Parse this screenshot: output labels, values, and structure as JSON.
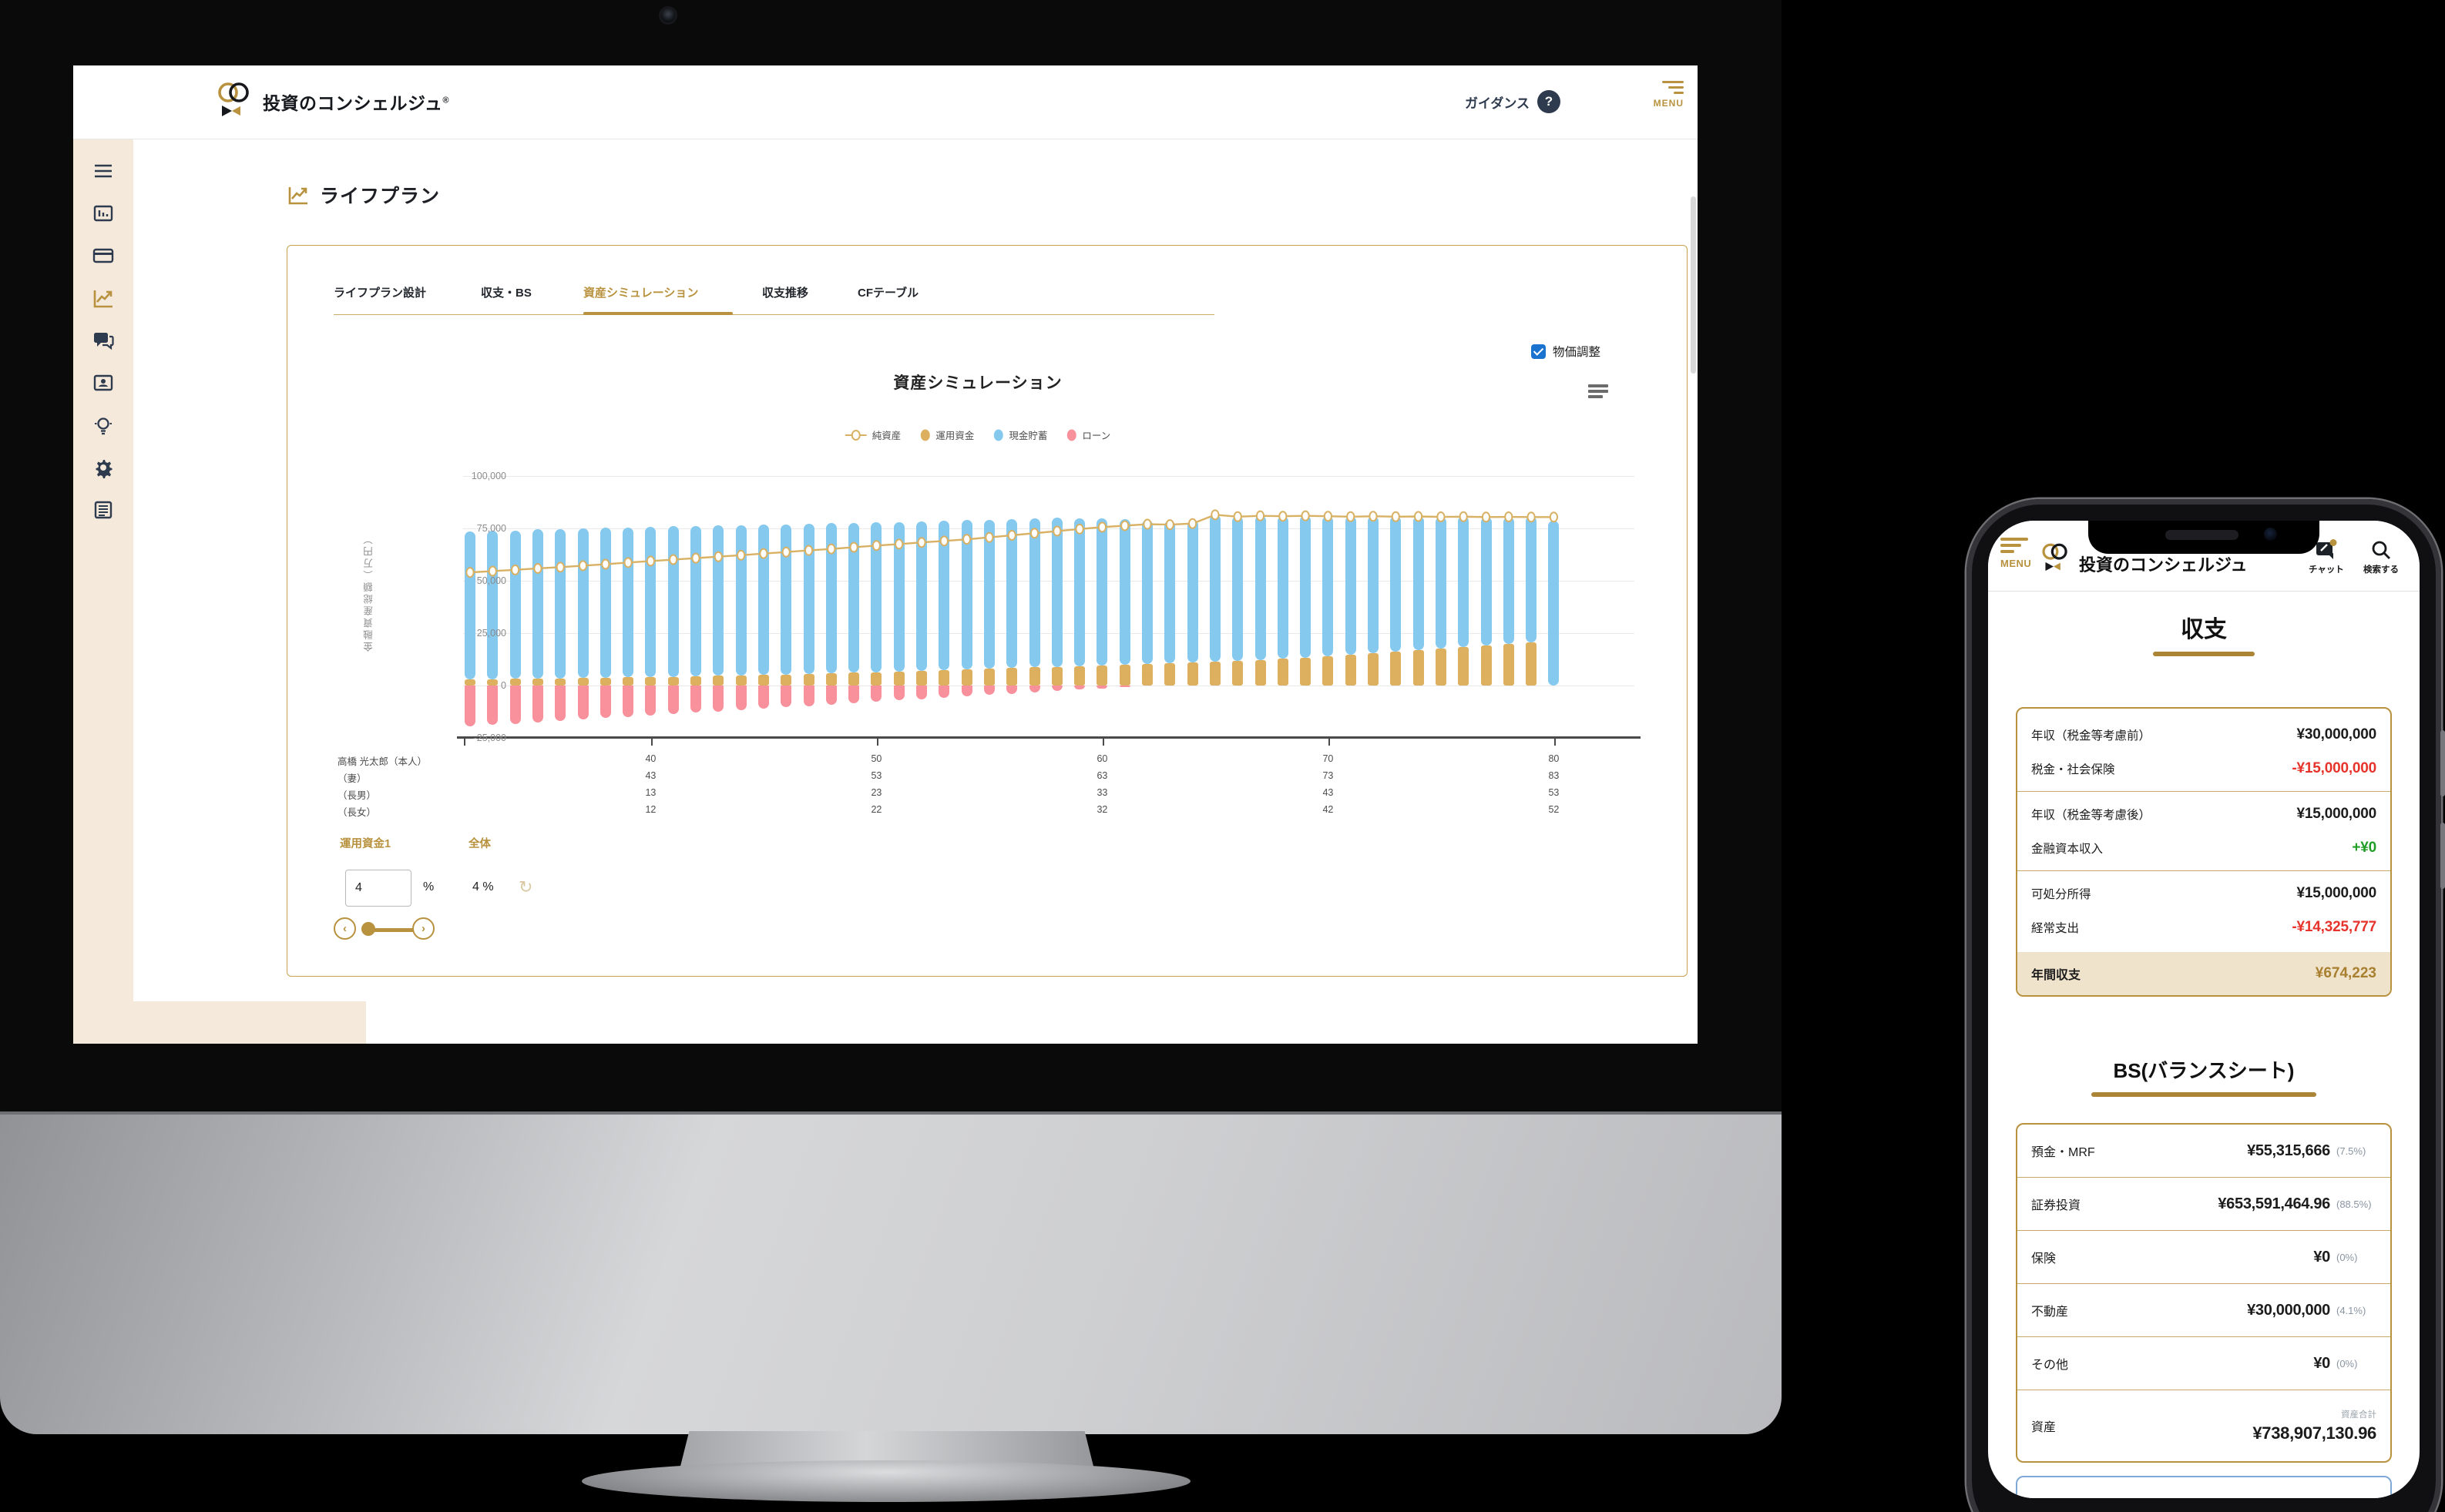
{
  "colors": {
    "gold": "#b8923e",
    "gold_dark": "#a87f2f",
    "navy": "#2e3a4e",
    "beige": "#f4e9da",
    "chart_blue": "#85c9ef",
    "chart_gold": "#ddb05f",
    "chart_red": "#f8919c",
    "line_gold": "#d9b164",
    "negative_red": "#e6342c",
    "positive_green": "#1f9d26",
    "checkbox_blue": "#1a73cf"
  },
  "desktop": {
    "brand": {
      "name": "投資のコンシェルジュ",
      "registered": "®"
    },
    "header": {
      "guidance": "ガイダンス",
      "help_icon": "?",
      "menu": "MENU"
    },
    "sidebar": {
      "icons": [
        "hamburger-icon",
        "dashboard-chart-icon",
        "credit-card-icon",
        "line-chart-icon",
        "chat-icon",
        "id-card-icon",
        "lightbulb-icon",
        "gear-icon",
        "document-icon"
      ],
      "active_index": 3
    },
    "page_title": "ライフプラン",
    "tabs": {
      "items": [
        "ライフプラン設計",
        "収支・BS",
        "資産シミュレーション",
        "収支推移",
        "CFテーブル"
      ],
      "active": 2
    },
    "price_adjust": {
      "label": "物価調整",
      "checked": true
    },
    "controls": {
      "fund_tab": "運用資金1",
      "all_tab": "全体",
      "rate_value": "4",
      "percent": "%",
      "overall_rate": "4 %"
    }
  },
  "chart_data": {
    "type": "bar+line",
    "title": "資産シミュレーション",
    "ylabel": "金融資産総額（万円）",
    "ylim": [
      -25000,
      100000
    ],
    "ytick_values": [
      100000,
      75000,
      50000,
      25000,
      0,
      -25000
    ],
    "ytick_labels": [
      "100,000",
      "75,000",
      "50,000",
      "25,000",
      "0",
      "-25,000"
    ],
    "age_start": 32,
    "age_end": 80,
    "tick_ages": [
      40,
      50,
      60,
      70,
      80
    ],
    "legend": [
      {
        "label": "純資産",
        "marker": "line-circle",
        "color": "#d9b164"
      },
      {
        "label": "運用資金",
        "marker": "circle",
        "color": "#ddb05f"
      },
      {
        "label": "現金貯蓄",
        "marker": "circle",
        "color": "#85c9ef"
      },
      {
        "label": "ローン",
        "marker": "circle",
        "color": "#f8919c"
      }
    ],
    "series": [
      {
        "name": "純資産",
        "type": "line",
        "values": [
          54000,
          54600,
          55200,
          55900,
          56500,
          57200,
          57900,
          58700,
          59400,
          60100,
          60800,
          61500,
          62200,
          63000,
          63700,
          64500,
          65200,
          66000,
          66800,
          67500,
          68300,
          69000,
          69800,
          70700,
          71700,
          72700,
          73700,
          74700,
          75600,
          76300,
          77000,
          76800,
          77300,
          81500,
          80600,
          81000,
          80800,
          81000,
          80800,
          80600,
          80800,
          80600,
          80700,
          80500,
          80600,
          80400,
          80500,
          80400,
          80400
        ]
      },
      {
        "name": "運用資金",
        "type": "bar",
        "values": [
          3000,
          3100,
          3200,
          3300,
          3400,
          3600,
          3700,
          3900,
          4000,
          4200,
          4400,
          4600,
          4800,
          5000,
          5300,
          5500,
          5800,
          6100,
          6400,
          6700,
          7000,
          7300,
          7600,
          8000,
          8300,
          8700,
          9000,
          9300,
          9700,
          10000,
          10400,
          10700,
          11000,
          11300,
          11800,
          12300,
          12900,
          13400,
          14000,
          14700,
          15400,
          16100,
          16800,
          17500,
          18300,
          19100,
          19900,
          20700,
          0
        ]
      },
      {
        "name": "現金貯蓄",
        "type": "bar",
        "values": [
          70500,
          70900,
          70800,
          71200,
          71400,
          71400,
          71500,
          71600,
          71800,
          71800,
          71800,
          71800,
          71800,
          71800,
          71700,
          71700,
          71600,
          71600,
          71500,
          71400,
          71400,
          71300,
          71300,
          71200,
          71200,
          71100,
          71000,
          70500,
          69900,
          69300,
          68700,
          68100,
          68200,
          70200,
          69200,
          68900,
          68100,
          67700,
          66900,
          66100,
          65500,
          64600,
          64000,
          63100,
          62400,
          61400,
          60700,
          60000,
          78500
        ]
      },
      {
        "name": "ローン",
        "type": "bar",
        "values": [
          -19500,
          -18850,
          -18200,
          -17550,
          -16900,
          -16250,
          -15600,
          -14950,
          -14300,
          -13650,
          -13000,
          -12350,
          -11700,
          -11050,
          -10400,
          -9750,
          -9100,
          -8450,
          -7800,
          -7150,
          -6500,
          -5850,
          -5200,
          -4550,
          -3900,
          -3250,
          -2600,
          -1950,
          -1300,
          -650,
          0,
          0,
          0,
          0,
          0,
          0,
          0,
          0,
          0,
          0,
          0,
          0,
          0,
          0,
          0,
          0,
          0,
          0,
          0
        ]
      }
    ],
    "x_axis_rows": [
      {
        "label": "高橋 光太郎（本人）",
        "values": [
          "40",
          "50",
          "60",
          "70",
          "80"
        ]
      },
      {
        "label": "（妻）",
        "values": [
          "43",
          "53",
          "63",
          "73",
          "83"
        ]
      },
      {
        "label": "（長男）",
        "values": [
          "13",
          "23",
          "33",
          "43",
          "53"
        ]
      },
      {
        "label": "（長女）",
        "values": [
          "12",
          "22",
          "32",
          "42",
          "52"
        ]
      }
    ]
  },
  "phone": {
    "header": {
      "menu": "MENU",
      "brand": "投資のコンシェルジュ",
      "chat": "チャット",
      "search": "検索する"
    },
    "income": {
      "title": "収支",
      "groups": [
        [
          {
            "label": "年収（税金等考慮前）",
            "value": "¥30,000,000",
            "tone": "normal"
          },
          {
            "label": "税金・社会保険",
            "value": "-¥15,000,000",
            "tone": "negative"
          }
        ],
        [
          {
            "label": "年収（税金等考慮後）",
            "value": "¥15,000,000",
            "tone": "normal"
          },
          {
            "label": "金融資本収入",
            "value": "+¥0",
            "tone": "positive"
          }
        ],
        [
          {
            "label": "可処分所得",
            "value": "¥15,000,000",
            "tone": "normal"
          },
          {
            "label": "経常支出",
            "value": "-¥14,325,777",
            "tone": "negative"
          }
        ]
      ],
      "total": {
        "label": "年間収支",
        "value": "¥674,223"
      }
    },
    "balance": {
      "title": "BS(バランスシート)",
      "rows": [
        {
          "label": "預金・MRF",
          "value": "¥55,315,666",
          "percent": "(7.5%)"
        },
        {
          "label": "証券投資",
          "value": "¥653,591,464.96",
          "percent": "(88.5%)"
        },
        {
          "label": "保険",
          "value": "¥0",
          "percent": "(0%)"
        },
        {
          "label": "不動産",
          "value": "¥30,000,000",
          "percent": "(4.1%)"
        },
        {
          "label": "その他",
          "value": "¥0",
          "percent": "(0%)"
        }
      ],
      "total": {
        "label": "資産",
        "sublabel": "資産合計",
        "value": "¥738,907,130.96"
      }
    }
  }
}
